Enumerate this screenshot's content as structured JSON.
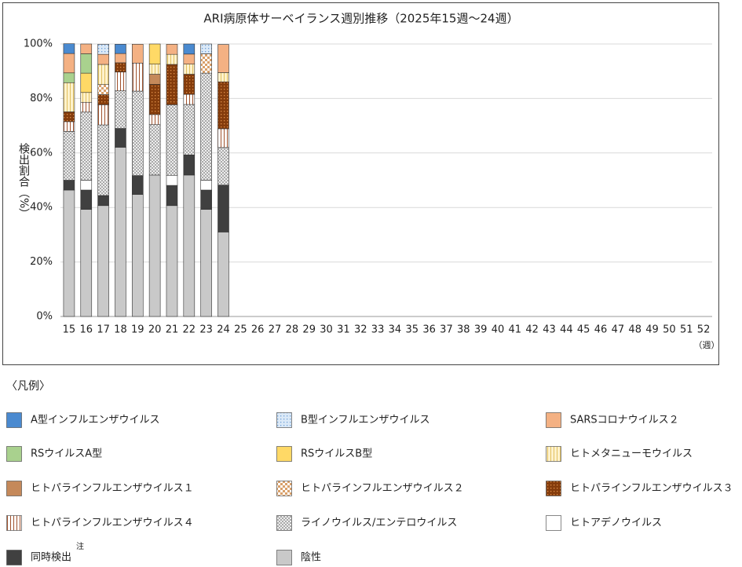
{
  "chart_data": {
    "type": "stacked_bar",
    "title": "ARI病原体サーベイランス週別推移（2025年15週～24週）",
    "y_label": "検出割合（%）",
    "x_unit": "（週）",
    "legend_title": "〈凡例〉",
    "note_mark": "注",
    "categories": [
      "15",
      "16",
      "17",
      "18",
      "19",
      "20",
      "21",
      "22",
      "23",
      "24",
      "25",
      "26",
      "27",
      "28",
      "29",
      "30",
      "31",
      "32",
      "33",
      "34",
      "35",
      "36",
      "37",
      "38",
      "39",
      "40",
      "41",
      "42",
      "43",
      "44",
      "45",
      "46",
      "47",
      "48",
      "49",
      "50",
      "51",
      "52"
    ],
    "ylim": [
      0,
      100
    ],
    "yticks": [
      {
        "value": 0,
        "label": "0%"
      },
      {
        "value": 20,
        "label": "20%"
      },
      {
        "value": 40,
        "label": "40%"
      },
      {
        "value": 60,
        "label": "60%"
      },
      {
        "value": 80,
        "label": "80%"
      },
      {
        "value": 100,
        "label": "100%"
      }
    ],
    "grid": true,
    "series": [
      {
        "name": "A型インフルエンザウイルス",
        "color": "#4a8ad0",
        "pattern": "solid",
        "values": [
          3.6,
          0,
          0,
          3.4,
          0,
          0,
          0,
          3.7,
          0,
          0,
          null,
          null,
          null,
          null,
          null,
          null,
          null,
          null,
          null,
          null,
          null,
          null,
          null,
          null,
          null,
          null,
          null,
          null,
          null,
          null,
          null,
          null,
          null,
          null,
          null,
          null,
          null,
          null
        ]
      },
      {
        "name": "B型インフルエンザウイルス",
        "color": "#dbe9f7",
        "pattern": "dots",
        "pattern_color": "#6fa0d8",
        "values": [
          0,
          0,
          3.7,
          0,
          0,
          0,
          0,
          0,
          3.6,
          0,
          null,
          null,
          null,
          null,
          null,
          null,
          null,
          null,
          null,
          null,
          null,
          null,
          null,
          null,
          null,
          null,
          null,
          null,
          null,
          null,
          null,
          null,
          null,
          null,
          null,
          null,
          null,
          null
        ]
      },
      {
        "name": "SARSコロナウイルス２",
        "color": "#f4b183",
        "pattern": "solid",
        "values": [
          7.1,
          3.6,
          3.7,
          3.4,
          6.9,
          0,
          3.7,
          3.7,
          0,
          10.3,
          null,
          null,
          null,
          null,
          null,
          null,
          null,
          null,
          null,
          null,
          null,
          null,
          null,
          null,
          null,
          null,
          null,
          null,
          null,
          null,
          null,
          null,
          null,
          null,
          null,
          null,
          null,
          null
        ]
      },
      {
        "name": "RSウイルスA型",
        "color": "#a9d18e",
        "pattern": "solid",
        "values": [
          3.6,
          7.1,
          0,
          0,
          0,
          0,
          0,
          0,
          0,
          0,
          null,
          null,
          null,
          null,
          null,
          null,
          null,
          null,
          null,
          null,
          null,
          null,
          null,
          null,
          null,
          null,
          null,
          null,
          null,
          null,
          null,
          null,
          null,
          null,
          null,
          null,
          null,
          null
        ]
      },
      {
        "name": "RSウイルスB型",
        "color": "#ffd966",
        "pattern": "solid",
        "values": [
          0,
          7.1,
          0,
          0,
          0,
          7.4,
          0,
          0,
          0,
          0,
          null,
          null,
          null,
          null,
          null,
          null,
          null,
          null,
          null,
          null,
          null,
          null,
          null,
          null,
          null,
          null,
          null,
          null,
          null,
          null,
          null,
          null,
          null,
          null,
          null,
          null,
          null,
          null
        ]
      },
      {
        "name": "ヒトメタニューモウイルス",
        "color": "#fff2cc",
        "pattern": "vlines",
        "pattern_color": "#e0c060",
        "values": [
          10.7,
          3.6,
          7.4,
          0,
          0,
          3.7,
          3.7,
          3.7,
          0,
          3.4,
          null,
          null,
          null,
          null,
          null,
          null,
          null,
          null,
          null,
          null,
          null,
          null,
          null,
          null,
          null,
          null,
          null,
          null,
          null,
          null,
          null,
          null,
          null,
          null,
          null,
          null,
          null,
          null
        ]
      },
      {
        "name": "ヒトパラインフルエンザウイルス１",
        "color": "#c5895a",
        "pattern": "solid",
        "values": [
          0,
          0,
          0,
          0,
          0,
          3.7,
          0,
          0,
          0,
          0,
          null,
          null,
          null,
          null,
          null,
          null,
          null,
          null,
          null,
          null,
          null,
          null,
          null,
          null,
          null,
          null,
          null,
          null,
          null,
          null,
          null,
          null,
          null,
          null,
          null,
          null,
          null,
          null
        ]
      },
      {
        "name": "ヒトパラインフルエンザウイルス２",
        "color": "#ffffff",
        "pattern": "checker",
        "pattern_color": "#d9a06a",
        "values": [
          0,
          0,
          3.7,
          0,
          0,
          0,
          0,
          0,
          7.1,
          0,
          null,
          null,
          null,
          null,
          null,
          null,
          null,
          null,
          null,
          null,
          null,
          null,
          null,
          null,
          null,
          null,
          null,
          null,
          null,
          null,
          null,
          null,
          null,
          null,
          null,
          null,
          null,
          null
        ]
      },
      {
        "name": "ヒトパラインフルエンザウイルス３",
        "color": "#843c0c",
        "pattern": "dots",
        "pattern_color": "#e0904a",
        "values": [
          3.6,
          0,
          3.7,
          3.4,
          0,
          11.1,
          14.8,
          7.4,
          0,
          17.2,
          null,
          null,
          null,
          null,
          null,
          null,
          null,
          null,
          null,
          null,
          null,
          null,
          null,
          null,
          null,
          null,
          null,
          null,
          null,
          null,
          null,
          null,
          null,
          null,
          null,
          null,
          null,
          null
        ]
      },
      {
        "name": "ヒトパラインフルエンザウイルス４",
        "color": "#ffffff",
        "pattern": "vlines",
        "pattern_color": "#a0522d",
        "values": [
          3.6,
          3.6,
          7.4,
          6.9,
          10.3,
          3.7,
          0,
          3.7,
          0,
          6.9,
          null,
          null,
          null,
          null,
          null,
          null,
          null,
          null,
          null,
          null,
          null,
          null,
          null,
          null,
          null,
          null,
          null,
          null,
          null,
          null,
          null,
          null,
          null,
          null,
          null,
          null,
          null,
          null
        ]
      },
      {
        "name": "ライノウイルス/エンテロウイルス",
        "color": "#ffffff",
        "pattern": "crosshatch",
        "pattern_color": "#999999",
        "values": [
          17.9,
          25,
          25.9,
          13.8,
          31.0,
          18.5,
          25.9,
          18.5,
          39.3,
          13.8,
          null,
          null,
          null,
          null,
          null,
          null,
          null,
          null,
          null,
          null,
          null,
          null,
          null,
          null,
          null,
          null,
          null,
          null,
          null,
          null,
          null,
          null,
          null,
          null,
          null,
          null,
          null,
          null
        ]
      },
      {
        "name": "ヒトアデノウイルス",
        "color": "#ffffff",
        "pattern": "solid",
        "values": [
          0,
          3.6,
          0,
          0,
          0,
          0,
          3.7,
          0,
          3.6,
          0,
          null,
          null,
          null,
          null,
          null,
          null,
          null,
          null,
          null,
          null,
          null,
          null,
          null,
          null,
          null,
          null,
          null,
          null,
          null,
          null,
          null,
          null,
          null,
          null,
          null,
          null,
          null,
          null
        ]
      },
      {
        "name": "同時検出",
        "color": "#404040",
        "pattern": "solid",
        "values": [
          3.6,
          7.1,
          3.7,
          6.9,
          6.9,
          0,
          7.4,
          7.4,
          7.1,
          17.2,
          null,
          null,
          null,
          null,
          null,
          null,
          null,
          null,
          null,
          null,
          null,
          null,
          null,
          null,
          null,
          null,
          null,
          null,
          null,
          null,
          null,
          null,
          null,
          null,
          null,
          null,
          null,
          null
        ]
      },
      {
        "name": "陰性",
        "color": "#c9c9c9",
        "pattern": "solid",
        "values": [
          46.4,
          39.3,
          40.7,
          62.1,
          44.8,
          51.9,
          40.7,
          51.9,
          39.3,
          31.0,
          null,
          null,
          null,
          null,
          null,
          null,
          null,
          null,
          null,
          null,
          null,
          null,
          null,
          null,
          null,
          null,
          null,
          null,
          null,
          null,
          null,
          null,
          null,
          null,
          null,
          null,
          null,
          null
        ]
      }
    ]
  }
}
